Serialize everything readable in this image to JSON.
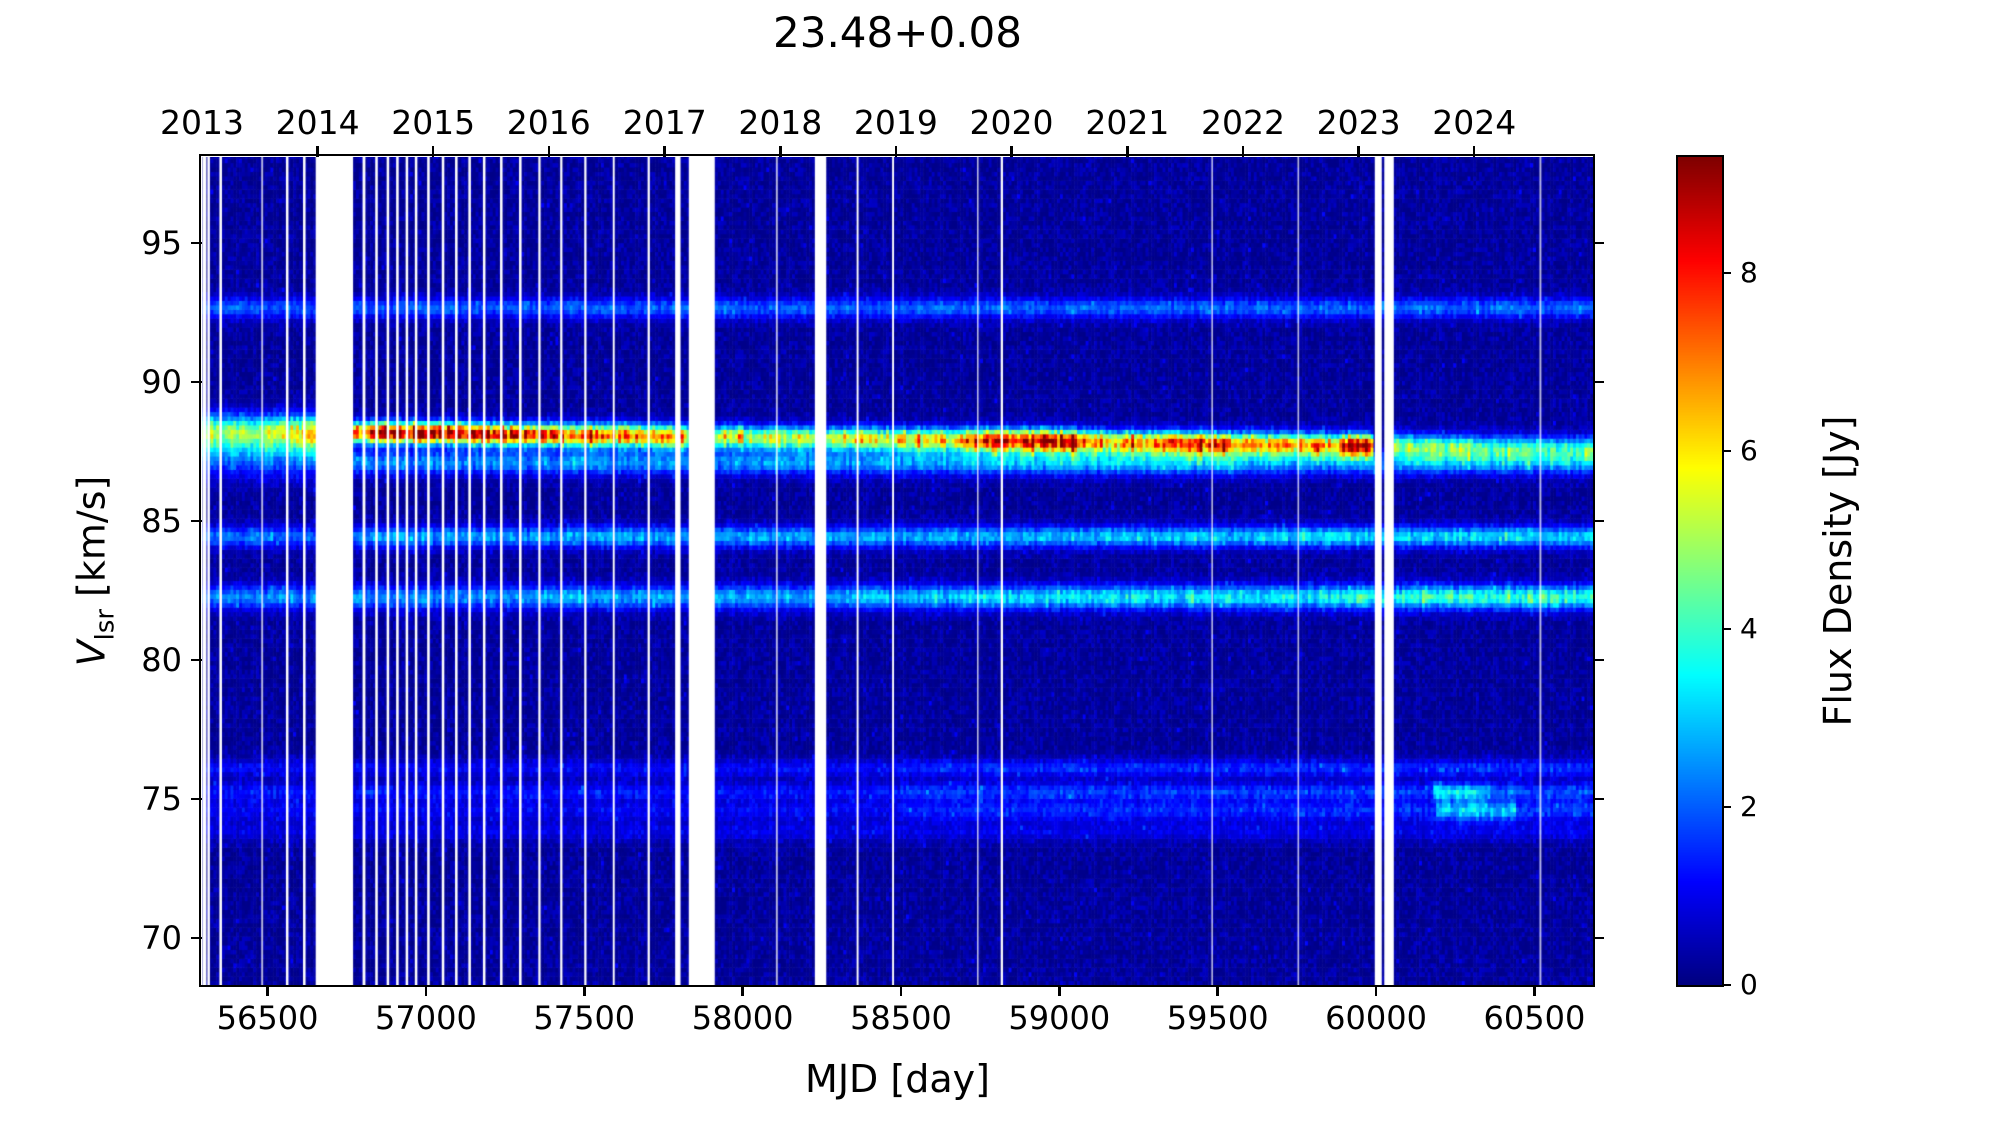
{
  "title": "23.48+0.08",
  "xlabel": "MJD [day]",
  "ylabel": {
    "var": "V",
    "sub": "lsr",
    "rest": " [km/s]"
  },
  "colorbar_label": "Flux Density [Jy]",
  "chart_data": {
    "type": "heatmap",
    "title": "23.48+0.08",
    "xlabel": "MJD [day]",
    "ylabel": "V_lsr [km/s]",
    "colorbar": {
      "label": "Flux Density [Jy]",
      "ticks": [
        0,
        2,
        4,
        6,
        8
      ],
      "vmin": 0,
      "vmax": 9.3,
      "colormap": "jet"
    },
    "x_range_mjd": [
      56293,
      60685
    ],
    "y_range_kms": [
      68.3,
      98.1
    ],
    "x_ticks_mjd": [
      56500,
      57000,
      57500,
      58000,
      58500,
      59000,
      59500,
      60000,
      60500
    ],
    "y_ticks_kms": [
      70,
      75,
      80,
      85,
      90,
      95
    ],
    "top_axis_years": [
      {
        "label": "2013",
        "mjd": 56293
      },
      {
        "label": "2014",
        "mjd": 56658
      },
      {
        "label": "2015",
        "mjd": 57023
      },
      {
        "label": "2016",
        "mjd": 57388
      },
      {
        "label": "2017",
        "mjd": 57754
      },
      {
        "label": "2018",
        "mjd": 58119
      },
      {
        "label": "2019",
        "mjd": 58484
      },
      {
        "label": "2020",
        "mjd": 58849
      },
      {
        "label": "2021",
        "mjd": 59215
      },
      {
        "label": "2022",
        "mjd": 59580
      },
      {
        "label": "2023",
        "mjd": 59945
      },
      {
        "label": "2024",
        "mjd": 60310
      }
    ],
    "noise_floor_jy": [
      0.08,
      0.7
    ],
    "maser_lines": [
      {
        "name": "line-92.7",
        "v_kms": 92.68,
        "sigma_kms": 0.26,
        "flux_segments": [
          [
            56293,
            60685,
            1.7,
            1.8
          ]
        ]
      },
      {
        "name": "line-main-88",
        "v_start_kms": 88.28,
        "v_end_kms": 87.62,
        "sigma_kms": 0.3,
        "flux_segments": [
          [
            56293,
            56660,
            3.6,
            4.4,
            0.4
          ],
          [
            56770,
            56900,
            7.8,
            8.8,
            0.26
          ],
          [
            56900,
            57250,
            8.8,
            8.6,
            0.26
          ],
          [
            57250,
            57430,
            8.3,
            7.7,
            0.26
          ],
          [
            57430,
            57820,
            7.3,
            6.4,
            0.28
          ],
          [
            57820,
            58230,
            5.3,
            5.0,
            0.28
          ],
          [
            58230,
            58700,
            5.4,
            6.1,
            0.28
          ],
          [
            58700,
            59060,
            7.7,
            8.3,
            0.28
          ],
          [
            59060,
            59330,
            6.4,
            6.5,
            0.28
          ],
          [
            59330,
            59560,
            7.5,
            7.0,
            0.28
          ],
          [
            59560,
            59880,
            6.3,
            6.3,
            0.28
          ],
          [
            59880,
            59996,
            8.4,
            7.9,
            0.28
          ],
          [
            60056,
            60300,
            4.3,
            3.8,
            0.3
          ],
          [
            60300,
            60685,
            3.5,
            3.2,
            0.3
          ]
        ]
      },
      {
        "name": "line-2013-broad-shoulder",
        "v_kms": 87.5,
        "sigma_kms": 0.58,
        "flux_segments": [
          [
            56293,
            56660,
            2.0,
            2.4
          ]
        ]
      },
      {
        "name": "line-87.1",
        "v_kms": 87.12,
        "sigma_kms": 0.3,
        "flux_segments": [
          [
            56770,
            58700,
            2.1,
            2.3
          ],
          [
            58700,
            59600,
            2.7,
            2.7
          ],
          [
            59600,
            60685,
            2.3,
            2.3
          ]
        ]
      },
      {
        "name": "line-84.5",
        "v_kms": 84.45,
        "sigma_kms": 0.26,
        "flux_segments": [
          [
            56293,
            56660,
            1.8,
            1.8
          ],
          [
            56770,
            59000,
            2.3,
            2.5
          ],
          [
            59000,
            60685,
            2.7,
            3.0
          ]
        ]
      },
      {
        "name": "line-82.3",
        "v_kms": 82.28,
        "sigma_kms": 0.3,
        "flux_segments": [
          [
            56293,
            57400,
            2.1,
            2.2
          ],
          [
            57400,
            58700,
            2.4,
            2.6
          ],
          [
            58700,
            59900,
            2.9,
            3.1
          ],
          [
            59900,
            60685,
            3.5,
            3.8
          ]
        ]
      },
      {
        "name": "line-76.1",
        "v_kms": 76.12,
        "sigma_kms": 0.22,
        "flux_segments": [
          [
            56293,
            58500,
            0.8,
            0.9
          ],
          [
            58500,
            60685,
            1.2,
            1.3
          ]
        ]
      },
      {
        "name": "line-75.3",
        "v_kms": 75.28,
        "sigma_kms": 0.22,
        "flux_segments": [
          [
            56293,
            58500,
            1.0,
            1.0
          ],
          [
            58500,
            60180,
            1.4,
            1.4
          ],
          [
            60180,
            60360,
            3.1,
            2.9
          ],
          [
            60360,
            60685,
            1.6,
            1.5
          ]
        ]
      },
      {
        "name": "line-74.6",
        "v_kms": 74.6,
        "sigma_kms": 0.25,
        "flux_segments": [
          [
            56293,
            58500,
            0.8,
            0.8
          ],
          [
            58500,
            60190,
            1.2,
            1.2
          ],
          [
            60190,
            60440,
            2.9,
            2.7
          ],
          [
            60440,
            60685,
            1.4,
            1.4
          ]
        ]
      },
      {
        "name": "line-73.8",
        "v_kms": 73.85,
        "sigma_kms": 0.25,
        "flux_segments": [
          [
            56293,
            60685,
            0.6,
            0.7
          ]
        ]
      }
    ],
    "observation_gaps_mjd": [
      [
        56294,
        56307,
        "solid"
      ],
      [
        56310,
        56318,
        "solid"
      ],
      [
        56348,
        56356,
        "solid"
      ],
      [
        56480,
        56486,
        "faint"
      ],
      [
        56558,
        56566,
        "solid"
      ],
      [
        56612,
        56620,
        "solid"
      ],
      [
        56652,
        56770,
        "wide"
      ],
      [
        56800,
        56809,
        "solid"
      ],
      [
        56840,
        56848,
        "solid"
      ],
      [
        56876,
        56884,
        "solid"
      ],
      [
        56906,
        56914,
        "solid"
      ],
      [
        56936,
        56944,
        "solid"
      ],
      [
        56965,
        56973,
        "solid"
      ],
      [
        57004,
        57012,
        "solid"
      ],
      [
        57050,
        57058,
        "solid"
      ],
      [
        57092,
        57100,
        "solid"
      ],
      [
        57134,
        57142,
        "solid"
      ],
      [
        57180,
        57188,
        "solid"
      ],
      [
        57234,
        57242,
        "solid"
      ],
      [
        57294,
        57302,
        "solid"
      ],
      [
        57355,
        57362,
        "solid"
      ],
      [
        57424,
        57431,
        "solid"
      ],
      [
        57500,
        57507,
        "solid"
      ],
      [
        57590,
        57596,
        "solid"
      ],
      [
        57700,
        57707,
        "solid"
      ],
      [
        57787,
        57804,
        "solid"
      ],
      [
        57830,
        57912,
        "wide"
      ],
      [
        58105,
        58111,
        "faint"
      ],
      [
        58228,
        58264,
        "wide"
      ],
      [
        58360,
        58366,
        "solid"
      ],
      [
        58472,
        58478,
        "solid"
      ],
      [
        58740,
        58745,
        "faint"
      ],
      [
        58815,
        58822,
        "solid"
      ],
      [
        59480,
        59485,
        "faint"
      ],
      [
        59752,
        59757,
        "faint"
      ],
      [
        59996,
        60018,
        "wide"
      ],
      [
        60026,
        60056,
        "wide"
      ],
      [
        60516,
        60522,
        "faint"
      ]
    ]
  }
}
